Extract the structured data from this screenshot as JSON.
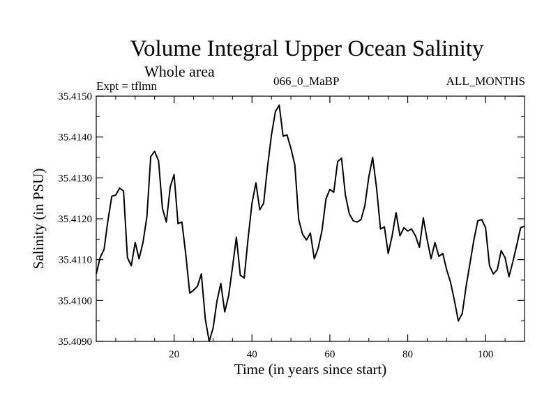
{
  "chart_data": {
    "type": "line",
    "title": "Volume Integral Upper Ocean Salinity",
    "subtitle": "Whole area",
    "annotations": {
      "left": "Expt = tflmn",
      "center": "066_0_MaBP",
      "right": "ALL_MONTHS"
    },
    "xlabel": "Time (in years since start)",
    "ylabel": "Salinity (in PSU)",
    "xlim": [
      0,
      110
    ],
    "ylim": [
      35.409,
      35.415
    ],
    "xticks": [
      20,
      40,
      60,
      80,
      100
    ],
    "xtick_labels": [
      "20",
      "40",
      "60",
      "80",
      "100"
    ],
    "yticks": [
      35.409,
      35.41,
      35.411,
      35.412,
      35.413,
      35.414,
      35.415
    ],
    "ytick_labels": [
      "35.4090",
      "35.4100",
      "35.4110",
      "35.4120",
      "35.4130",
      "35.4140",
      "35.4150"
    ],
    "grid": false,
    "series": [
      {
        "name": "Salinity",
        "x": [
          0,
          1,
          2,
          3,
          4,
          5,
          6,
          7,
          8,
          9,
          10,
          11,
          12,
          13,
          14,
          15,
          16,
          17,
          18,
          19,
          20,
          21,
          22,
          23,
          24,
          25,
          26,
          27,
          28,
          29,
          30,
          31,
          32,
          33,
          34,
          35,
          36,
          37,
          38,
          39,
          40,
          41,
          42,
          43,
          44,
          45,
          46,
          47,
          48,
          49,
          50,
          51,
          52,
          53,
          54,
          55,
          56,
          57,
          58,
          59,
          60,
          61,
          62,
          63,
          64,
          65,
          66,
          67,
          68,
          69,
          70,
          71,
          72,
          73,
          74,
          75,
          76,
          77,
          78,
          79,
          80,
          81,
          82,
          83,
          84,
          85,
          86,
          87,
          88,
          89,
          90,
          91,
          92,
          93,
          94,
          95,
          96,
          97,
          98,
          99,
          100,
          101,
          102,
          103,
          104,
          105,
          106,
          107,
          108,
          109,
          110
        ],
        "values": [
          35.41065,
          35.41105,
          35.41125,
          35.41195,
          35.41255,
          35.41258,
          35.41275,
          35.41268,
          35.41105,
          35.41085,
          35.41142,
          35.41102,
          35.41142,
          35.41205,
          35.41352,
          35.41365,
          35.41342,
          35.41225,
          35.41192,
          35.41278,
          35.41308,
          35.41188,
          35.41192,
          35.41112,
          35.41018,
          35.41025,
          35.41035,
          35.41065,
          35.40955,
          35.409,
          35.40932,
          35.40998,
          35.41042,
          35.40972,
          35.41012,
          35.41082,
          35.41155,
          35.41062,
          35.41055,
          35.41152,
          35.41238,
          35.41288,
          35.41222,
          35.41238,
          35.41328,
          35.41405,
          35.41462,
          35.41478,
          35.41402,
          35.41405,
          35.41372,
          35.41332,
          35.41198,
          35.41162,
          35.41148,
          35.41165,
          35.41102,
          35.41128,
          35.41172,
          35.41248,
          35.41272,
          35.41265,
          35.4134,
          35.41348,
          35.41258,
          35.41212,
          35.41195,
          35.41192,
          35.41198,
          35.41232,
          35.41302,
          35.4135,
          35.41275,
          35.41175,
          35.4118,
          35.41115,
          35.41158,
          35.41215,
          35.41158,
          35.41178,
          35.4117,
          35.41175,
          35.41158,
          35.4113,
          35.41202,
          35.41148,
          35.41102,
          35.41142,
          35.41108,
          35.41115,
          35.41075,
          35.41045,
          35.41,
          35.4095,
          35.40968,
          35.41035,
          35.41092,
          35.41148,
          35.41195,
          35.41198,
          35.41178,
          35.41085,
          35.41065,
          35.41075,
          35.41122,
          35.41105,
          35.41058,
          35.41095,
          35.41135,
          35.41178,
          35.41182
        ]
      }
    ]
  }
}
